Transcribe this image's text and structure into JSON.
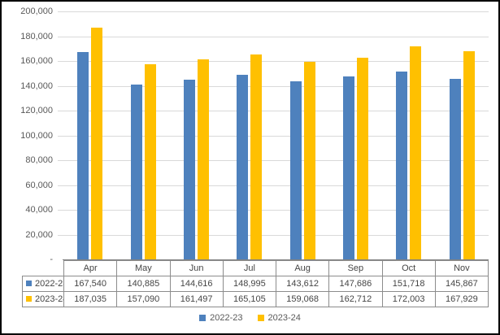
{
  "chart_data": {
    "type": "bar",
    "title": "",
    "xlabel": "",
    "ylabel": "",
    "categories": [
      "Apr",
      "May",
      "Jun",
      "Jul",
      "Aug",
      "Sep",
      "Oct",
      "Nov"
    ],
    "series": [
      {
        "name": "2022-23",
        "color": "#4E81BD",
        "values": [
          167540,
          140885,
          144616,
          148995,
          143612,
          147686,
          151718,
          145867
        ]
      },
      {
        "name": "2023-24",
        "color": "#FFC000",
        "values": [
          187035,
          157090,
          161497,
          165105,
          159068,
          162712,
          172003,
          167929
        ]
      }
    ],
    "ylim": [
      0,
      200000
    ],
    "y_tick_labels": [
      "200,000",
      "180,000",
      "160,000",
      "140,000",
      "120,000",
      "100,000",
      "80,000",
      "60,000",
      "40,000",
      "20,000",
      "-"
    ],
    "grid": true,
    "legend_position": "bottom",
    "data_table_shown": true
  },
  "legend": {
    "items": [
      {
        "label": "2022-23",
        "color": "#4E81BD"
      },
      {
        "label": "2023-24",
        "color": "#FFC000"
      }
    ]
  },
  "colors": {
    "gridline": "#d9d9d9",
    "axis_line": "#808080",
    "table_border": "#8c8c8c",
    "axis_text": "#595959",
    "frame_border": "#000000",
    "background": "#ffffff"
  }
}
